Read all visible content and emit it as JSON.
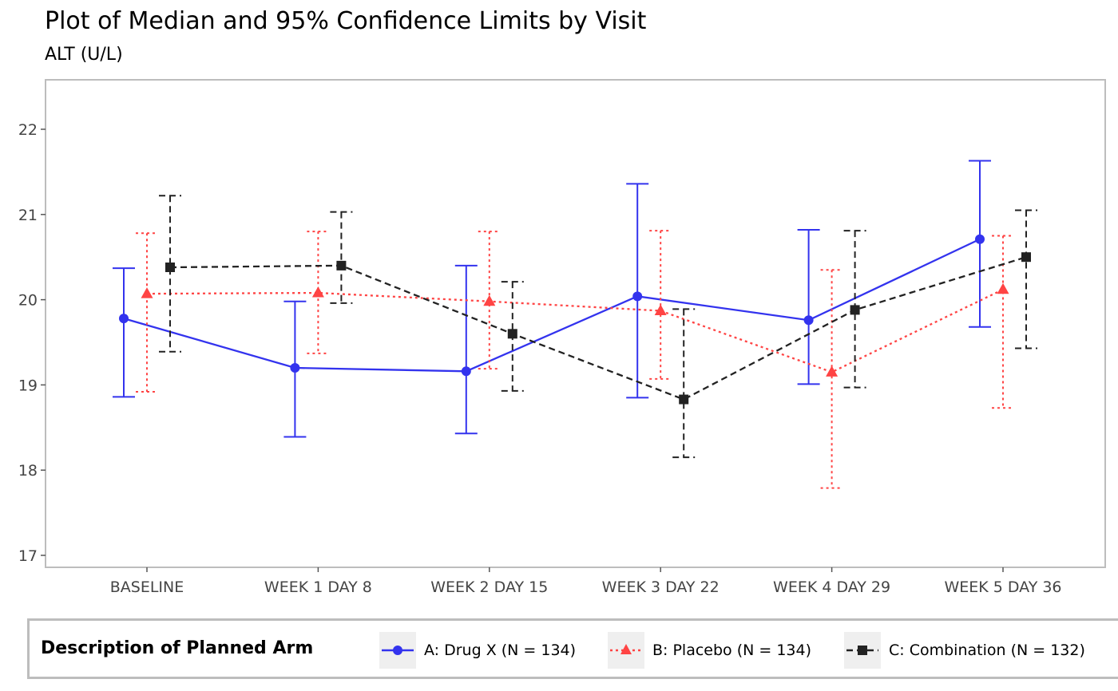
{
  "title": "Plot of Median and 95% Confidence Limits by Visit",
  "subtitle": "ALT (U/L)",
  "legend": {
    "title": "Description of Planned Arm",
    "items": [
      {
        "label": "A: Drug X (N = 134)"
      },
      {
        "label": "B: Placebo (N = 134)"
      },
      {
        "label": "C: Combination (N = 132)"
      }
    ]
  },
  "chart_data": {
    "type": "line",
    "title": "Plot of Median and 95% Confidence Limits by Visit",
    "subtitle": "ALT (U/L)",
    "xlabel": "",
    "ylabel": "",
    "categories": [
      "BASELINE",
      "WEEK 1 DAY 8",
      "WEEK 2 DAY 15",
      "WEEK 3 DAY 22",
      "WEEK 4 DAY 29",
      "WEEK 5 DAY 36"
    ],
    "ylim": [
      16.86,
      22.58
    ],
    "yticks": [
      17,
      18,
      19,
      20,
      21,
      22
    ],
    "grid": false,
    "legend_position": "bottom",
    "error_bars": "95% confidence limits",
    "series": [
      {
        "name": "A: Drug X (N = 134)",
        "color": "#3333ee",
        "linestyle": "solid",
        "marker": "circle",
        "values": [
          19.78,
          19.2,
          19.16,
          20.04,
          19.76,
          20.71
        ],
        "lower": [
          18.86,
          18.39,
          18.43,
          18.85,
          19.01,
          19.68
        ],
        "upper": [
          20.37,
          19.98,
          20.4,
          21.36,
          20.82,
          21.63
        ]
      },
      {
        "name": "B: Placebo (N = 134)",
        "color": "#ff4444",
        "linestyle": "dotted",
        "marker": "triangle",
        "values": [
          20.07,
          20.08,
          19.98,
          19.87,
          19.15,
          20.12
        ],
        "lower": [
          18.92,
          19.37,
          19.19,
          19.07,
          17.79,
          18.73
        ],
        "upper": [
          20.78,
          20.8,
          20.8,
          20.81,
          20.35,
          20.75
        ]
      },
      {
        "name": "C: Combination (N = 132)",
        "color": "#222222",
        "linestyle": "dashed",
        "marker": "square",
        "values": [
          20.38,
          20.4,
          19.6,
          18.83,
          19.88,
          20.5
        ],
        "lower": [
          19.39,
          19.96,
          18.93,
          18.15,
          18.97,
          19.43
        ],
        "upper": [
          21.22,
          21.03,
          20.21,
          19.89,
          20.81,
          21.05
        ]
      }
    ]
  }
}
